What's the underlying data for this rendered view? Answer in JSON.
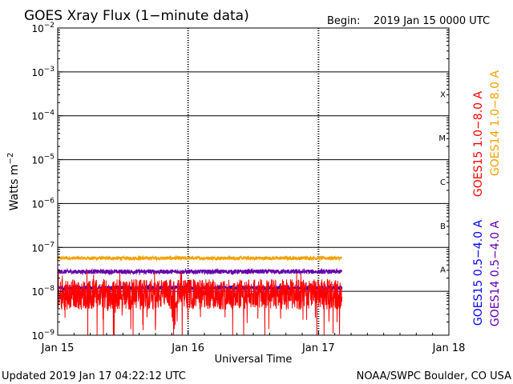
{
  "chart_data": {
    "type": "line",
    "title": "GOES Xray Flux (1−minute data)",
    "begin_label": "Begin:",
    "begin_value": "2019 Jan 15 0000 UTC",
    "xlabel": "Universal Time",
    "ylabel": "Watts m",
    "ylabel_exponent": "−2",
    "x_ticks": [
      "Jan 15",
      "Jan 16",
      "Jan 17",
      "Jan 18"
    ],
    "xlim_days": [
      0,
      3
    ],
    "data_end_day": 2.18,
    "y_scale": "log",
    "y_ticks": [
      {
        "base": "10",
        "exp": "−2",
        "value": 0.01
      },
      {
        "base": "10",
        "exp": "−3",
        "value": 0.001
      },
      {
        "base": "10",
        "exp": "−4",
        "value": 0.0001
      },
      {
        "base": "10",
        "exp": "−5",
        "value": 1e-05
      },
      {
        "base": "10",
        "exp": "−6",
        "value": 1e-06
      },
      {
        "base": "10",
        "exp": "−7",
        "value": 1e-07
      },
      {
        "base": "10",
        "exp": "−8",
        "value": 1e-08
      },
      {
        "base": "10",
        "exp": "−9",
        "value": 1e-09
      }
    ],
    "ylim": [
      1e-09,
      0.01
    ],
    "flare_classes": [
      {
        "label": "X",
        "value": 0.0001
      },
      {
        "label": "M",
        "value": 1e-05
      },
      {
        "label": "C",
        "value": 1e-06
      },
      {
        "label": "B",
        "value": 1e-07
      },
      {
        "label": "A",
        "value": 1e-08
      }
    ],
    "series": [
      {
        "name": "GOES15 1.0−8.0 A",
        "color": "#ff0000",
        "level": 8.5e-09,
        "noise": 0.35
      },
      {
        "name": "GOES14 1.0−8.0 A",
        "color": "#f2a000",
        "level": 5.7e-08,
        "noise": 0.04
      },
      {
        "name": "GOES15 0.5−4.0 A",
        "color": "#0000ff",
        "level": 1.2e-08,
        "noise": 0.05
      },
      {
        "name": "GOES14 0.5−4.0 A",
        "color": "#6600aa",
        "level": 2.8e-08,
        "noise": 0.05
      }
    ],
    "grid": true
  },
  "footer": {
    "updated": "Updated 2019 Jan 17 04:22:12 UTC",
    "source": "NOAA/SWPC Boulder, CO USA"
  }
}
